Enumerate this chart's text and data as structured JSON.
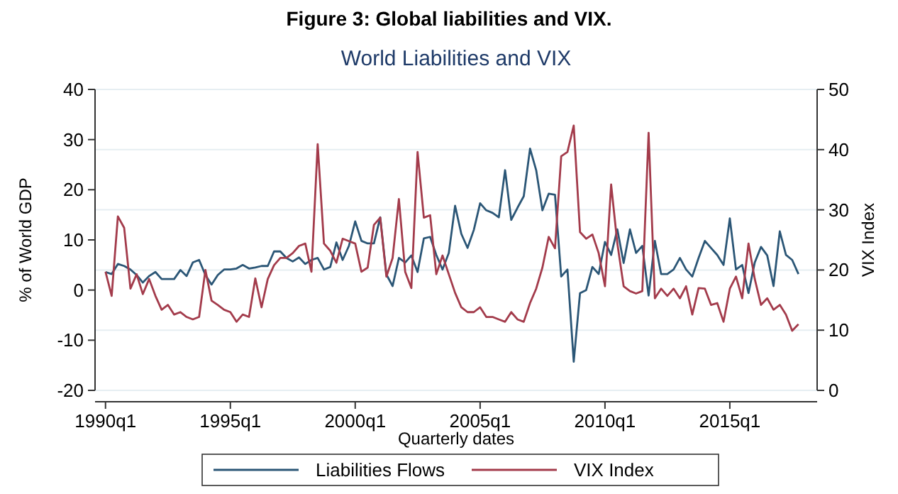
{
  "chart_data": {
    "type": "line",
    "title": "Figure 3: Global liabilities and VIX.",
    "subtitle": "World Liabilities and VIX",
    "xlabel": "Quarterly dates",
    "ylabel": "% of World GDP",
    "y2label": "VIX Index",
    "x": [
      "1990-01",
      "1990-04",
      "1990-07",
      "1990-10",
      "1991-01",
      "1991-04",
      "1991-07",
      "1991-10",
      "1992-01",
      "1992-04",
      "1992-07",
      "1992-10",
      "1993-01",
      "1993-04",
      "1993-07",
      "1993-10",
      "1994-01",
      "1994-04",
      "1994-07",
      "1994-10",
      "1995-01",
      "1995-04",
      "1995-07",
      "1995-10",
      "1996-01",
      "1996-04",
      "1996-07",
      "1996-10",
      "1997-01",
      "1997-04",
      "1997-07",
      "1997-10",
      "1998-01",
      "1998-04",
      "1998-07",
      "1998-10",
      "1999-01",
      "1999-04",
      "1999-07",
      "1999-10",
      "2000-01",
      "2000-04",
      "2000-07",
      "2000-10",
      "2001-01",
      "2001-04",
      "2001-07",
      "2001-10",
      "2002-01",
      "2002-04",
      "2002-07",
      "2002-10",
      "2003-01",
      "2003-04",
      "2003-07",
      "2003-10",
      "2004-01",
      "2004-04",
      "2004-07",
      "2004-10",
      "2005-01",
      "2005-04",
      "2005-07",
      "2005-10",
      "2006-01",
      "2006-04",
      "2006-07",
      "2006-10",
      "2007-01",
      "2007-04",
      "2007-07",
      "2007-10",
      "2008-01",
      "2008-04",
      "2008-07",
      "2008-10",
      "2009-01",
      "2009-04",
      "2009-07",
      "2009-10",
      "2010-01",
      "2010-04",
      "2010-07",
      "2010-10",
      "2011-01",
      "2011-04",
      "2011-07",
      "2011-10",
      "2012-01",
      "2012-04",
      "2012-07",
      "2012-10",
      "2013-01",
      "2013-04",
      "2013-07",
      "2013-10",
      "2014-01",
      "2014-04",
      "2014-07",
      "2014-10",
      "2015-01",
      "2015-04",
      "2015-07",
      "2015-10",
      "2016-01",
      "2016-04",
      "2016-07",
      "2016-10",
      "2017-01",
      "2017-04",
      "2017-07",
      "2017-10"
    ],
    "series": [
      {
        "name": "Liabilities Flows",
        "color": "#2b5676",
        "values": [
          3.6,
          3.2,
          5.2,
          4.8,
          4.1,
          3,
          1.5,
          2.8,
          3.6,
          2.2,
          2.2,
          2.2,
          4,
          2.8,
          5.5,
          6,
          3,
          1.1,
          3,
          4.1,
          4.1,
          4.3,
          5,
          4.3,
          4.5,
          4.8,
          4.8,
          7.7,
          7.7,
          6.4,
          5.7,
          6.5,
          5.2,
          6,
          6.4,
          4.1,
          4.6,
          9.5,
          6,
          8.8,
          13.7,
          9.8,
          9.3,
          9.3,
          14.5,
          3.1,
          0.8,
          6.4,
          5.5,
          6.9,
          3.6,
          10.3,
          10.6,
          7,
          4.1,
          7.4,
          16.8,
          11.2,
          8.4,
          12,
          17.3,
          15.9,
          15.4,
          14.5,
          23.9,
          14,
          16.4,
          18.7,
          28.2,
          23.9,
          15.9,
          19.2,
          19,
          2.7,
          4.1,
          -14.3,
          -0.6,
          0,
          4.6,
          3.2,
          9.6,
          7,
          12.1,
          5.4,
          12.1,
          7.4,
          8.8,
          -1.1,
          9.8,
          3.2,
          3.2,
          4.1,
          6.4,
          4.1,
          2.7,
          6.4,
          9.8,
          8.4,
          7,
          5,
          14.3,
          4.1,
          5,
          -0.6,
          5.5,
          8.6,
          6.9,
          0.8,
          11.7,
          7,
          6,
          3.2
        ]
      },
      {
        "name": "VIX Index",
        "color": "#a33b4b",
        "axis": "y2",
        "values": [
          19.7,
          15.7,
          28.9,
          27,
          16.9,
          19.3,
          16,
          18.5,
          15.7,
          13.4,
          14.2,
          12.6,
          13,
          12.2,
          11.8,
          12.2,
          20,
          14.9,
          14.2,
          13.4,
          13,
          11.4,
          12.6,
          12.2,
          18.6,
          13.8,
          18.5,
          20.8,
          22,
          22,
          22.8,
          24,
          24.4,
          19.7,
          40.9,
          24.4,
          23.2,
          21.2,
          25.2,
          24.8,
          24.4,
          19.7,
          20.4,
          27.5,
          28.7,
          18.9,
          22,
          31.8,
          19.7,
          17,
          39.6,
          28.7,
          29.1,
          19.3,
          22.4,
          19.3,
          16.2,
          13.8,
          13,
          13,
          13.8,
          12.2,
          12.2,
          11.8,
          11.4,
          13,
          11.8,
          11.4,
          14.5,
          16.9,
          20.4,
          25.5,
          23.6,
          38.9,
          39.6,
          44,
          26.3,
          25.2,
          25.9,
          22.8,
          17.3,
          34.2,
          24.4,
          17.3,
          16.5,
          16.1,
          16.5,
          42.8,
          15.3,
          16.9,
          15.7,
          16.9,
          15.3,
          17.3,
          12.6,
          17,
          16.9,
          14.2,
          14.5,
          11.4,
          16.9,
          18.9,
          15.3,
          24.4,
          18.5,
          14.2,
          15.3,
          13.4,
          14.2,
          12.6,
          9.9,
          11
        ]
      }
    ],
    "xlim": [
      "1989-08",
      "2018-07"
    ],
    "xticks": [
      {
        "value": "1990-01",
        "label": "1990q1"
      },
      {
        "value": "1995-01",
        "label": "1995q1"
      },
      {
        "value": "2000-01",
        "label": "2000q1"
      },
      {
        "value": "2005-01",
        "label": "2005q1"
      },
      {
        "value": "2010-01",
        "label": "2010q1"
      },
      {
        "value": "2015-01",
        "label": "2015q1"
      }
    ],
    "ylim": [
      -20,
      40
    ],
    "yticks": [
      -20,
      -10,
      0,
      10,
      20,
      30,
      40
    ],
    "y2lim": [
      0,
      50
    ],
    "y2ticks": [
      0,
      10,
      20,
      30,
      40,
      50
    ],
    "grid": "y",
    "legend": "bottom"
  }
}
